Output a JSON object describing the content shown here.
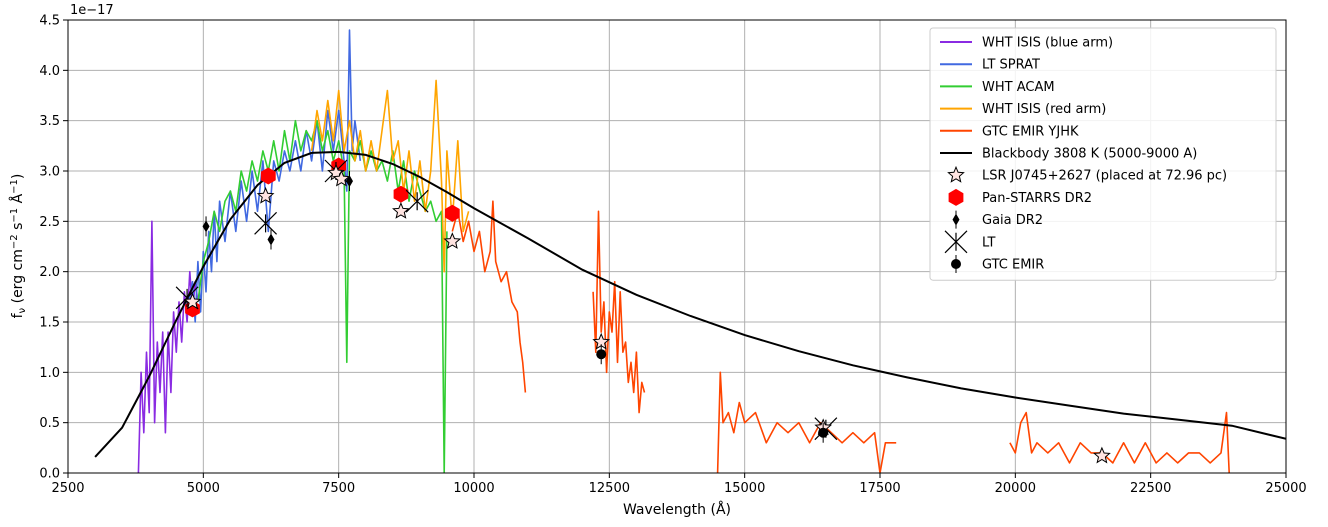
{
  "chart_data": {
    "type": "line",
    "xlabel": "Wavelength (Å)",
    "ylabel": "f_ν (erg cm⁻² s⁻¹ Å⁻¹)",
    "ylabel_parts": [
      "f",
      "ν",
      " (erg cm",
      "−2",
      " s",
      "−1",
      " Å",
      "−1",
      ")"
    ],
    "offset_text": "1e−17",
    "xlim": [
      2500,
      25000
    ],
    "ylim": [
      0.0,
      4.5
    ],
    "grid": true,
    "legend_position": "top-right",
    "x_ticks": [
      2500,
      5000,
      7500,
      10000,
      12500,
      15000,
      17500,
      20000,
      22500,
      25000
    ],
    "y_ticks": [
      0.0,
      0.5,
      1.0,
      1.5,
      2.0,
      2.5,
      3.0,
      3.5,
      4.0,
      4.5
    ],
    "spectra": [
      {
        "name": "WHT ISIS (blue arm)",
        "color": "#8a2be2",
        "segments": [
          [
            [
              3800,
              0.0
            ],
            [
              3850,
              1.0
            ],
            [
              3900,
              0.4
            ],
            [
              3950,
              1.2
            ],
            [
              4000,
              0.6
            ],
            [
              4050,
              2.5
            ],
            [
              4100,
              0.5
            ],
            [
              4150,
              1.3
            ],
            [
              4200,
              0.8
            ],
            [
              4250,
              1.4
            ],
            [
              4300,
              0.4
            ],
            [
              4350,
              1.4
            ],
            [
              4400,
              0.8
            ],
            [
              4450,
              1.6
            ],
            [
              4500,
              1.2
            ],
            [
              4550,
              1.7
            ],
            [
              4600,
              1.3
            ],
            [
              4650,
              1.8
            ],
            [
              4700,
              1.5
            ],
            [
              4750,
              2.0
            ],
            [
              4800,
              1.6
            ],
            [
              4850,
              1.9
            ],
            [
              4900,
              1.7
            ]
          ]
        ]
      },
      {
        "name": "LT SPRAT",
        "color": "#4169e1",
        "segments": [
          [
            [
              4700,
              1.6
            ],
            [
              4800,
              1.9
            ],
            [
              4850,
              1.5
            ],
            [
              4900,
              2.1
            ],
            [
              4950,
              1.6
            ],
            [
              5000,
              2.2
            ],
            [
              5050,
              1.8
            ],
            [
              5100,
              2.4
            ],
            [
              5150,
              2.0
            ],
            [
              5200,
              2.6
            ],
            [
              5250,
              2.1
            ],
            [
              5300,
              2.7
            ],
            [
              5400,
              2.3
            ],
            [
              5500,
              2.8
            ],
            [
              5600,
              2.4
            ],
            [
              5700,
              2.9
            ],
            [
              5800,
              2.5
            ],
            [
              5900,
              3.0
            ],
            [
              6000,
              2.6
            ],
            [
              6100,
              3.1
            ],
            [
              6200,
              2.4
            ],
            [
              6300,
              3.1
            ],
            [
              6400,
              2.9
            ],
            [
              6500,
              3.2
            ],
            [
              6600,
              3.0
            ],
            [
              6700,
              3.3
            ],
            [
              6800,
              3.0
            ],
            [
              6900,
              3.4
            ],
            [
              7000,
              3.1
            ],
            [
              7100,
              3.5
            ],
            [
              7200,
              3.0
            ],
            [
              7300,
              3.6
            ],
            [
              7400,
              3.2
            ],
            [
              7500,
              3.6
            ],
            [
              7600,
              3.1
            ],
            [
              7650,
              2.8
            ],
            [
              7700,
              4.4
            ],
            [
              7750,
              3.2
            ],
            [
              7800,
              3.5
            ],
            [
              7900,
              3.1
            ]
          ]
        ]
      },
      {
        "name": "WHT ACAM",
        "color": "#32cd32",
        "segments": [
          [
            [
              4900,
              1.7
            ],
            [
              5000,
              2.1
            ],
            [
              5100,
              2.3
            ],
            [
              5200,
              2.6
            ],
            [
              5300,
              2.4
            ],
            [
              5400,
              2.7
            ],
            [
              5500,
              2.8
            ],
            [
              5600,
              2.6
            ],
            [
              5700,
              3.0
            ],
            [
              5800,
              2.8
            ],
            [
              5900,
              3.1
            ],
            [
              6000,
              2.9
            ],
            [
              6100,
              3.2
            ],
            [
              6200,
              3.0
            ],
            [
              6300,
              3.3
            ],
            [
              6400,
              3.0
            ],
            [
              6500,
              3.4
            ],
            [
              6600,
              3.1
            ],
            [
              6700,
              3.5
            ],
            [
              6800,
              3.2
            ],
            [
              6900,
              3.4
            ],
            [
              7000,
              3.3
            ],
            [
              7100,
              3.5
            ],
            [
              7200,
              3.2
            ],
            [
              7300,
              3.4
            ],
            [
              7400,
              3.1
            ],
            [
              7500,
              3.3
            ],
            [
              7600,
              3.0
            ],
            [
              7650,
              1.1
            ],
            [
              7700,
              3.2
            ],
            [
              7800,
              3.1
            ],
            [
              7900,
              3.3
            ],
            [
              8000,
              3.0
            ],
            [
              8100,
              3.2
            ],
            [
              8200,
              3.0
            ],
            [
              8300,
              3.1
            ],
            [
              8400,
              2.9
            ],
            [
              8500,
              3.2
            ],
            [
              8600,
              2.8
            ],
            [
              8700,
              3.1
            ],
            [
              8800,
              2.7
            ],
            [
              8900,
              3.0
            ],
            [
              9000,
              2.8
            ],
            [
              9100,
              2.6
            ],
            [
              9200,
              2.7
            ],
            [
              9300,
              2.5
            ],
            [
              9400,
              2.6
            ],
            [
              9450,
              0.0
            ],
            [
              9500,
              2.4
            ]
          ]
        ]
      },
      {
        "name": "WHT ISIS (red arm)",
        "color": "#ffa500",
        "segments": [
          [
            [
              7000,
              3.2
            ],
            [
              7100,
              3.6
            ],
            [
              7200,
              3.3
            ],
            [
              7300,
              3.7
            ],
            [
              7400,
              3.3
            ],
            [
              7500,
              3.8
            ],
            [
              7600,
              3.2
            ],
            [
              7700,
              3.5
            ],
            [
              7800,
              3.1
            ],
            [
              7900,
              3.4
            ],
            [
              8000,
              3.0
            ],
            [
              8100,
              3.3
            ],
            [
              8200,
              3.0
            ],
            [
              8300,
              3.4
            ],
            [
              8400,
              3.8
            ],
            [
              8500,
              3.1
            ],
            [
              8600,
              3.3
            ],
            [
              8700,
              2.8
            ],
            [
              8800,
              3.2
            ],
            [
              8900,
              2.7
            ],
            [
              9000,
              3.1
            ],
            [
              9100,
              2.6
            ],
            [
              9200,
              3.0
            ],
            [
              9300,
              3.9
            ],
            [
              9400,
              2.9
            ],
            [
              9450,
              2.0
            ],
            [
              9500,
              3.2
            ],
            [
              9600,
              2.5
            ],
            [
              9700,
              3.3
            ],
            [
              9800,
              2.4
            ],
            [
              9900,
              2.6
            ]
          ]
        ]
      },
      {
        "name": "GTC EMIR YJHK",
        "color": "#ff4500",
        "segments": [
          [
            [
              9600,
              2.4
            ],
            [
              9700,
              2.6
            ],
            [
              9800,
              2.3
            ],
            [
              9900,
              2.5
            ],
            [
              10000,
              2.2
            ],
            [
              10100,
              2.4
            ],
            [
              10200,
              2.0
            ],
            [
              10300,
              2.2
            ],
            [
              10350,
              2.7
            ],
            [
              10400,
              2.1
            ],
            [
              10500,
              1.9
            ],
            [
              10600,
              2.0
            ],
            [
              10700,
              1.7
            ],
            [
              10800,
              1.6
            ],
            [
              10850,
              1.3
            ],
            [
              10900,
              1.1
            ],
            [
              10950,
              0.8
            ]
          ],
          [
            [
              12200,
              1.8
            ],
            [
              12250,
              1.2
            ],
            [
              12300,
              2.6
            ],
            [
              12350,
              1.4
            ],
            [
              12400,
              1.7
            ],
            [
              12450,
              1.0
            ],
            [
              12500,
              1.6
            ],
            [
              12550,
              1.4
            ],
            [
              12600,
              1.9
            ],
            [
              12650,
              1.1
            ],
            [
              12700,
              1.8
            ],
            [
              12750,
              1.2
            ],
            [
              12800,
              1.3
            ],
            [
              12850,
              0.9
            ],
            [
              12900,
              1.1
            ],
            [
              12950,
              0.8
            ],
            [
              13000,
              1.2
            ],
            [
              13050,
              0.6
            ],
            [
              13100,
              0.9
            ],
            [
              13150,
              0.8
            ]
          ],
          [
            [
              14500,
              0.0
            ],
            [
              14550,
              1.0
            ],
            [
              14600,
              0.5
            ],
            [
              14700,
              0.6
            ],
            [
              14800,
              0.4
            ],
            [
              14900,
              0.7
            ],
            [
              15000,
              0.5
            ],
            [
              15200,
              0.6
            ],
            [
              15400,
              0.3
            ],
            [
              15600,
              0.5
            ],
            [
              15800,
              0.4
            ],
            [
              16000,
              0.5
            ],
            [
              16200,
              0.3
            ],
            [
              16400,
              0.5
            ],
            [
              16600,
              0.4
            ],
            [
              16800,
              0.3
            ],
            [
              17000,
              0.4
            ],
            [
              17200,
              0.3
            ],
            [
              17400,
              0.4
            ],
            [
              17500,
              0.0
            ],
            [
              17600,
              0.3
            ],
            [
              17800,
              0.3
            ]
          ],
          [
            [
              19900,
              0.3
            ],
            [
              20000,
              0.2
            ],
            [
              20100,
              0.5
            ],
            [
              20200,
              0.6
            ],
            [
              20300,
              0.2
            ],
            [
              20400,
              0.3
            ],
            [
              20600,
              0.2
            ],
            [
              20800,
              0.3
            ],
            [
              21000,
              0.1
            ],
            [
              21200,
              0.3
            ],
            [
              21400,
              0.2
            ],
            [
              21600,
              0.2
            ],
            [
              21800,
              0.1
            ],
            [
              22000,
              0.3
            ],
            [
              22200,
              0.1
            ],
            [
              22400,
              0.3
            ],
            [
              22600,
              0.1
            ],
            [
              22800,
              0.2
            ],
            [
              23000,
              0.1
            ],
            [
              23200,
              0.2
            ],
            [
              23400,
              0.2
            ],
            [
              23600,
              0.1
            ],
            [
              23800,
              0.2
            ],
            [
              23900,
              0.6
            ],
            [
              23950,
              0.0
            ]
          ]
        ]
      }
    ],
    "blackbody": {
      "name": "Blackbody 3808 K (5000-9000 A)",
      "color": "#000000",
      "x": [
        3000,
        3500,
        4000,
        4500,
        5000,
        5500,
        6000,
        6500,
        7000,
        7500,
        8000,
        8500,
        9000,
        9500,
        10000,
        11000,
        12000,
        13000,
        14000,
        15000,
        16000,
        17000,
        18000,
        19000,
        20000,
        21000,
        22000,
        23000,
        24000,
        25000
      ],
      "y": [
        0.16,
        0.45,
        0.96,
        1.52,
        2.05,
        2.52,
        2.86,
        3.08,
        3.18,
        3.19,
        3.16,
        3.07,
        2.94,
        2.79,
        2.63,
        2.33,
        2.02,
        1.77,
        1.56,
        1.37,
        1.21,
        1.07,
        0.95,
        0.84,
        0.75,
        0.67,
        0.59,
        0.53,
        0.47,
        0.34
      ]
    },
    "points": [
      {
        "name": "LSR J0745+2627 (placed at 72.96 pc)",
        "marker": "star",
        "values": [
          [
            4800,
            1.7
          ],
          [
            6150,
            2.75
          ],
          [
            7450,
            2.98
          ],
          [
            7550,
            2.92
          ],
          [
            8650,
            2.6
          ],
          [
            9600,
            2.3
          ],
          [
            12350,
            1.3
          ],
          [
            16450,
            0.45
          ],
          [
            21600,
            0.17
          ]
        ]
      },
      {
        "name": "Pan-STARRS DR2",
        "marker": "hexagon",
        "color": "#ff0000",
        "values": [
          [
            4800,
            1.63
          ],
          [
            6200,
            2.95
          ],
          [
            7500,
            3.05
          ],
          [
            8650,
            2.77
          ],
          [
            9600,
            2.58
          ]
        ]
      },
      {
        "name": "Gaia DR2",
        "marker": "diamond",
        "values": [
          [
            5050,
            2.45
          ],
          [
            6250,
            2.32
          ],
          [
            7700,
            2.9
          ]
        ]
      },
      {
        "name": "LT",
        "marker": "x",
        "values": [
          [
            4700,
            1.74
          ],
          [
            6150,
            2.48
          ],
          [
            7450,
            3.0
          ],
          [
            8950,
            2.7
          ],
          [
            16500,
            0.44
          ]
        ]
      },
      {
        "name": "GTC EMIR",
        "marker": "circle",
        "values": [
          [
            12350,
            1.18
          ],
          [
            16450,
            0.4
          ]
        ]
      }
    ]
  }
}
